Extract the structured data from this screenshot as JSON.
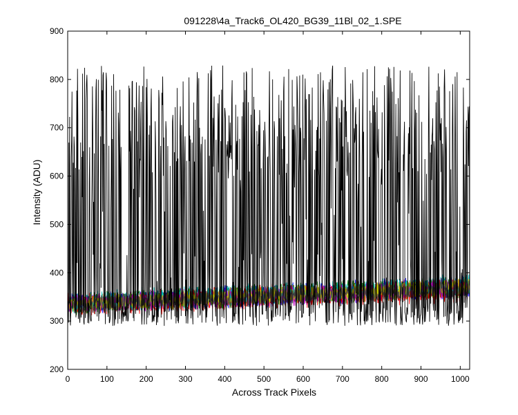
{
  "chart_data": {
    "type": "line",
    "title": "091228\\4a_Track6_OL420_BG39_11Bl_02_1.SPE",
    "xlabel": "Across Track Pixels",
    "ylabel": "Intensity (ADU)",
    "xlim": [
      0,
      1024
    ],
    "ylim": [
      200,
      900
    ],
    "xticks": [
      "0",
      "100",
      "200",
      "300",
      "400",
      "500",
      "600",
      "700",
      "800",
      "900",
      "1000"
    ],
    "yticks": [
      "200",
      "300",
      "400",
      "500",
      "600",
      "700",
      "800",
      "900"
    ],
    "grid": false,
    "legend": "none",
    "background": "#ffffff",
    "series_description": [
      {
        "color": "#000000",
        "kind": "spiky",
        "low_range": [
          290,
          340
        ],
        "high_range": [
          600,
          830
        ]
      },
      {
        "color": "#0000ff",
        "kind": "noise-band",
        "baseline_start": 335,
        "baseline_end": 370,
        "noise": 20
      },
      {
        "color": "#008000",
        "kind": "noise-band",
        "baseline_start": 335,
        "baseline_end": 372,
        "noise": 20
      },
      {
        "color": "#ff0000",
        "kind": "noise-band",
        "baseline_start": 333,
        "baseline_end": 365,
        "noise": 22
      },
      {
        "color": "#00bfbf",
        "kind": "noise-band",
        "baseline_start": 338,
        "baseline_end": 375,
        "noise": 20
      },
      {
        "color": "#bf00bf",
        "kind": "noise-band",
        "baseline_start": 335,
        "baseline_end": 368,
        "noise": 18
      },
      {
        "color": "#bfbf00",
        "kind": "noise-band",
        "baseline_start": 336,
        "baseline_end": 370,
        "noise": 18
      },
      {
        "color": "#404040",
        "kind": "noise-band",
        "baseline_start": 334,
        "baseline_end": 366,
        "noise": 16
      }
    ]
  }
}
